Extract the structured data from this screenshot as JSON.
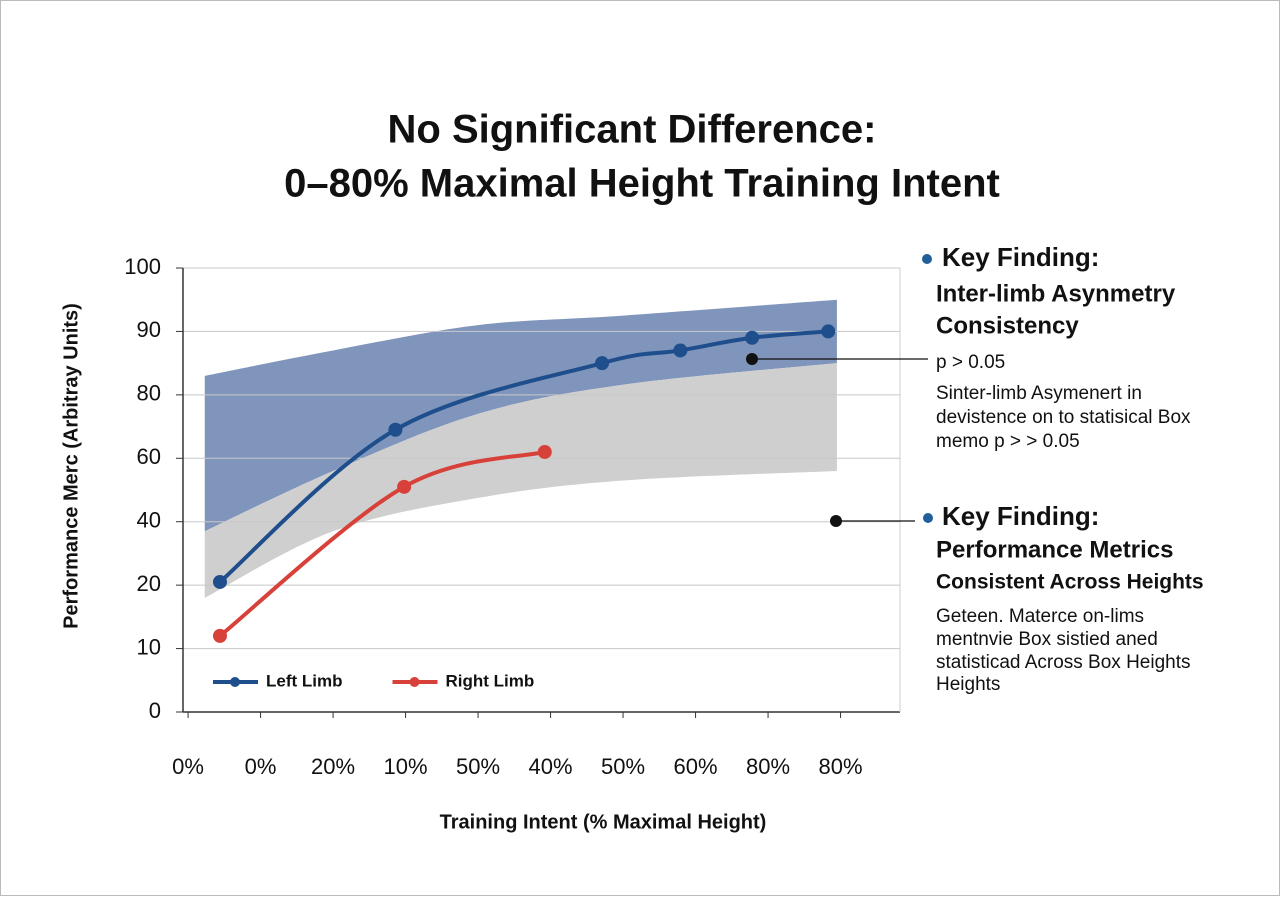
{
  "chart_data": {
    "type": "line",
    "title": [
      "No Significant Difference:",
      "0–80% Maximal Height Training Intent"
    ],
    "x_label": "Training Intent (% Maximal Height)",
    "y_label": "Performance Merc (Arbitray Units)",
    "categories": [
      "0%",
      "0%",
      "20%",
      "10%",
      "50%",
      "40%",
      "50%",
      "60%",
      "80%",
      "80%"
    ],
    "xlim": [
      -0.07,
      9.82
    ],
    "ylim": [
      0,
      100
    ],
    "yticks": [
      0,
      10,
      20,
      40,
      60,
      80,
      90,
      100
    ],
    "y_scale": "tick-spaced",
    "grid": true,
    "legend": "lower left",
    "series": [
      {
        "name": "Left Limb",
        "color": "#1f4e8c",
        "x": [
          0.44,
          2.86,
          5.71,
          6.79,
          7.78,
          8.83
        ],
        "values": [
          21,
          69,
          85,
          87,
          89,
          90
        ]
      },
      {
        "name": "Right Limb",
        "color": "#d8413a",
        "x": [
          0.44,
          2.98,
          4.92
        ],
        "values": [
          12,
          51,
          62
        ]
      }
    ],
    "bands": [
      {
        "color": "#7f95bb",
        "x": [
          0.23,
          2,
          4,
          6,
          8.95
        ],
        "upper": [
          83,
          87,
          91,
          92.5,
          95
        ],
        "lower": [
          37,
          56,
          74,
          81.6,
          85
        ]
      },
      {
        "color": "#cfcfcf",
        "x": [
          0.23,
          2,
          4,
          6,
          8.95
        ],
        "upper": [
          37,
          56,
          74,
          81.6,
          85
        ],
        "lower": [
          18,
          37,
          47.5,
          53,
          56
        ]
      }
    ],
    "annotations": [
      {
        "heading": "Key Finding:",
        "subheading": [
          "Inter-limb Asynmetry",
          "Consistency"
        ],
        "lines": [
          "p > 0.05",
          "Sinter-limb Asymenert in",
          "devistence on to statisical Box",
          "memo p > > 0.05"
        ]
      },
      {
        "heading": "Key Finding:",
        "subheading": [
          "Performance Metrics",
          "Consistent Across Heights"
        ],
        "lines": [
          "Geteen. Materce on-lims",
          "mentnvie Box sistied aned",
          "statisticad Across Box Heights",
          "Heights"
        ]
      }
    ]
  }
}
